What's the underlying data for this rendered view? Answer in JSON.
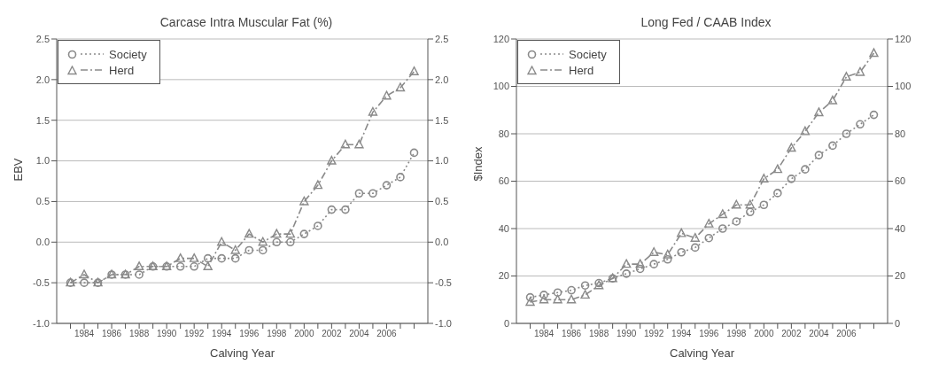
{
  "chart_data": [
    {
      "type": "line",
      "title": "Carcase Intra Muscular Fat (%)",
      "xlabel": "Calving Year",
      "ylabel": "EBV",
      "x": [
        1983,
        1984,
        1985,
        1986,
        1987,
        1988,
        1989,
        1990,
        1991,
        1992,
        1993,
        1994,
        1995,
        1996,
        1997,
        1998,
        1999,
        2000,
        2001,
        2002,
        2003,
        2004,
        2005,
        2006,
        2007,
        2008
      ],
      "xlim": [
        1982,
        2009
      ],
      "xticks": [
        {
          "value": 1983,
          "label": null
        },
        1984,
        {
          "value": 1985,
          "label": null
        },
        1986,
        {
          "value": 1987,
          "label": null
        },
        1988,
        {
          "value": 1989,
          "label": null
        },
        1990,
        {
          "value": 1991,
          "label": null
        },
        1992,
        {
          "value": 1993,
          "label": null
        },
        1994,
        {
          "value": 1995,
          "label": null
        },
        1996,
        {
          "value": 1997,
          "label": null
        },
        1998,
        {
          "value": 1999,
          "label": null
        },
        2000,
        {
          "value": 2001,
          "label": null
        },
        2002,
        {
          "value": 2003,
          "label": null
        },
        2004,
        {
          "value": 2005,
          "label": null
        },
        2006,
        {
          "value": 2007,
          "label": null
        },
        {
          "value": 2008,
          "label": null
        }
      ],
      "ylim": [
        -1.0,
        2.5
      ],
      "yticks": [
        {
          "value": -1.0,
          "label": "-1.0"
        },
        {
          "value": -0.5,
          "label": "-0.5"
        },
        {
          "value": 0,
          "label": "0.0"
        },
        {
          "value": 0.5,
          "label": "0.5"
        },
        {
          "value": 1.0,
          "label": "1.0"
        },
        {
          "value": 1.5,
          "label": "1.5"
        },
        {
          "value": 2.0,
          "label": "2.0"
        },
        {
          "value": 2.5,
          "label": "2.5"
        }
      ],
      "y2lim": [
        -1.0,
        2.5
      ],
      "y2ticks": [
        {
          "value": -1.0,
          "label": "-1.0"
        },
        {
          "value": -0.5,
          "label": "-0.5"
        },
        {
          "value": 0,
          "label": "0.0"
        },
        {
          "value": 0.5,
          "label": "0.5"
        },
        {
          "value": 1.0,
          "label": "1.0"
        },
        {
          "value": 1.5,
          "label": "1.5"
        },
        {
          "value": 2.0,
          "label": "2.0"
        },
        {
          "value": 2.5,
          "label": "2.5"
        }
      ],
      "grid": "y",
      "legend": "top left",
      "series": [
        {
          "name": "Society",
          "color": "#8a8a8a",
          "marker": "circle",
          "line_style": "dotted",
          "values": [
            -0.5,
            -0.5,
            -0.5,
            -0.4,
            -0.4,
            -0.4,
            -0.3,
            -0.3,
            -0.3,
            -0.3,
            -0.2,
            -0.2,
            -0.2,
            -0.1,
            -0.1,
            0.0,
            0.0,
            0.1,
            0.2,
            0.4,
            0.4,
            0.6,
            0.6,
            0.7,
            0.8,
            1.1
          ]
        },
        {
          "name": "Herd",
          "color": "#8a8a8a",
          "marker": "triangle",
          "line_style": "dashed",
          "values": [
            -0.5,
            -0.4,
            -0.5,
            -0.4,
            -0.4,
            -0.3,
            -0.3,
            -0.3,
            -0.2,
            -0.2,
            -0.3,
            0.0,
            -0.1,
            0.1,
            0.0,
            0.1,
            0.1,
            0.5,
            0.7,
            1.0,
            1.2,
            1.2,
            1.6,
            1.8,
            1.9,
            2.1
          ]
        }
      ]
    },
    {
      "type": "line",
      "title": "Long Fed / CAAB Index",
      "xlabel": "Calving Year",
      "ylabel": "$Index",
      "x": [
        1983,
        1984,
        1985,
        1986,
        1987,
        1988,
        1989,
        1990,
        1991,
        1992,
        1993,
        1994,
        1995,
        1996,
        1997,
        1998,
        1999,
        2000,
        2001,
        2002,
        2003,
        2004,
        2005,
        2006,
        2007,
        2008
      ],
      "xlim": [
        1982,
        2009
      ],
      "xticks": [
        {
          "value": 1983,
          "label": null
        },
        1984,
        {
          "value": 1985,
          "label": null
        },
        1986,
        {
          "value": 1987,
          "label": null
        },
        1988,
        {
          "value": 1989,
          "label": null
        },
        1990,
        {
          "value": 1991,
          "label": null
        },
        1992,
        {
          "value": 1993,
          "label": null
        },
        1994,
        {
          "value": 1995,
          "label": null
        },
        1996,
        {
          "value": 1997,
          "label": null
        },
        1998,
        {
          "value": 1999,
          "label": null
        },
        2000,
        {
          "value": 2001,
          "label": null
        },
        2002,
        {
          "value": 2003,
          "label": null
        },
        2004,
        {
          "value": 2005,
          "label": null
        },
        2006,
        {
          "value": 2007,
          "label": null
        },
        {
          "value": 2008,
          "label": null
        }
      ],
      "ylim": [
        0,
        120
      ],
      "yticks": [
        0,
        20,
        40,
        60,
        80,
        100,
        120
      ],
      "y2lim": [
        0,
        120
      ],
      "y2ticks": [
        0,
        20,
        40,
        60,
        80,
        100,
        120
      ],
      "grid": "y",
      "legend": "top left",
      "series": [
        {
          "name": "Society",
          "color": "#8a8a8a",
          "marker": "circle",
          "line_style": "dotted",
          "values": [
            11,
            12,
            13,
            14,
            16,
            17,
            19,
            21,
            23,
            25,
            27,
            30,
            32,
            36,
            40,
            43,
            47,
            50,
            55,
            61,
            65,
            71,
            75,
            80,
            84,
            88
          ]
        },
        {
          "name": "Herd",
          "color": "#8a8a8a",
          "marker": "triangle",
          "line_style": "dashed",
          "values": [
            9,
            10,
            10,
            10,
            12,
            16,
            19,
            25,
            25,
            30,
            29,
            38,
            36,
            42,
            46,
            50,
            50,
            61,
            65,
            74,
            81,
            89,
            94,
            104,
            106,
            114
          ]
        }
      ]
    }
  ]
}
